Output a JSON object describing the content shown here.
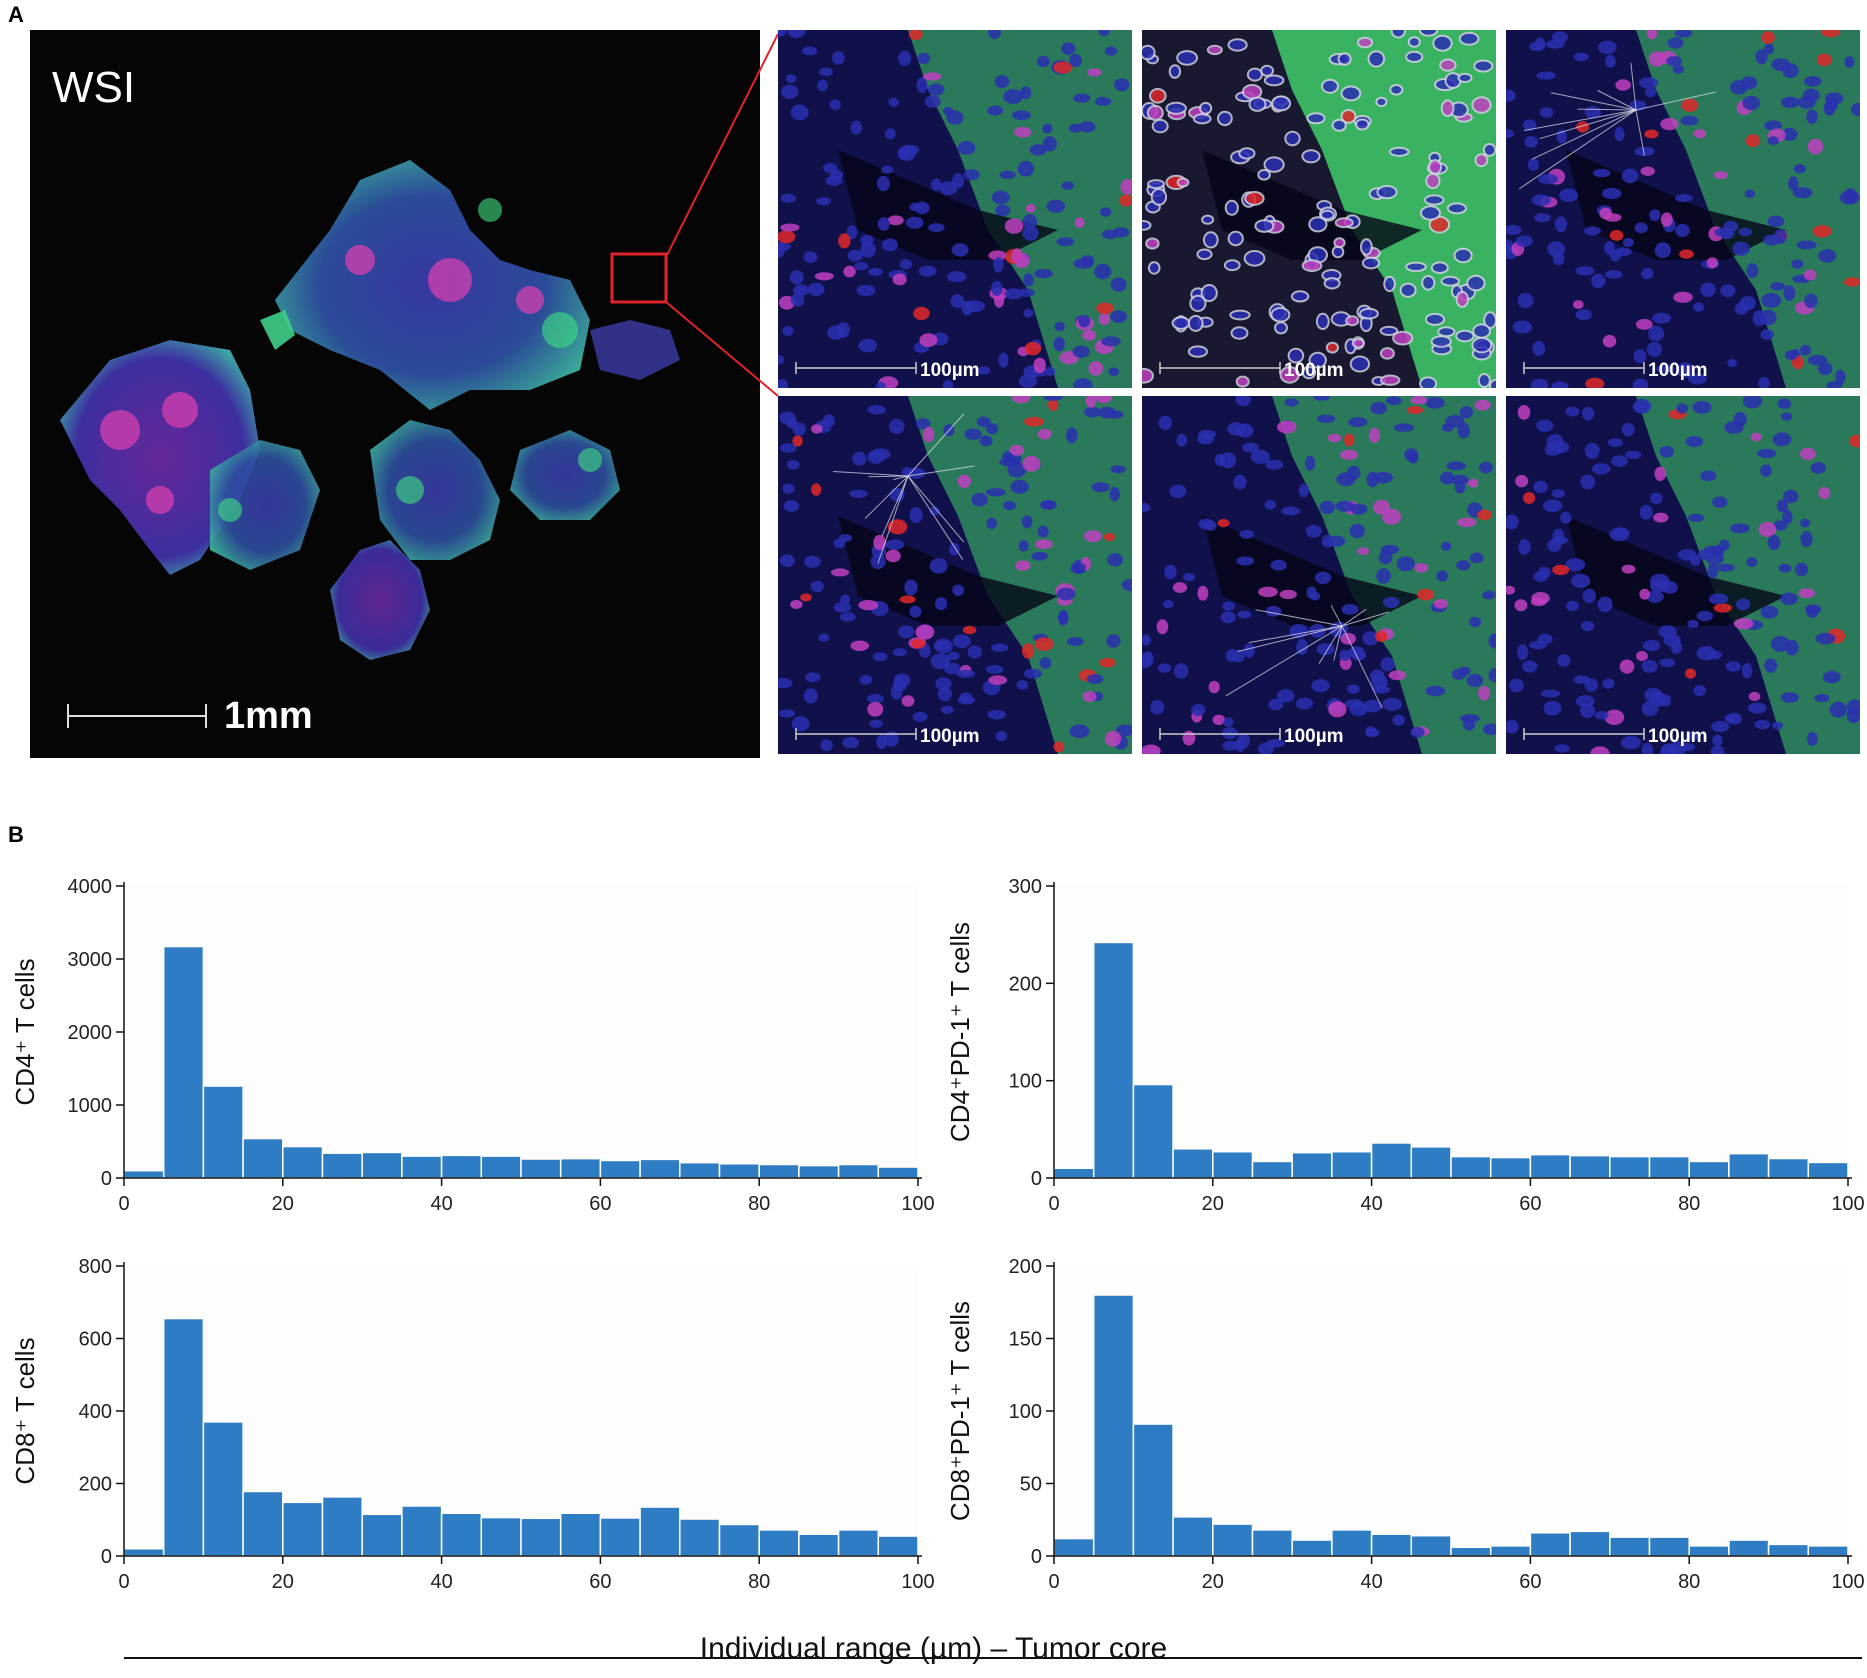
{
  "figure": {
    "panel_a_label": "A",
    "panel_b_label": "B",
    "wsi_label": "WSI",
    "wsi_scale": "1mm",
    "tile_scale": "100µm",
    "x_axis_label": "Individual range (µm) – Tumor core"
  },
  "colors": {
    "bar": "#2e7cc4",
    "tissue_green": "#3fcf6a",
    "nuclei_blue": "#2a2fb0",
    "tcell_magenta": "#c040c0",
    "marker_red": "#e02828",
    "highlight_box": "#e0222a"
  },
  "chart_data": [
    {
      "type": "bar",
      "ylabel": "CD4⁺ T cells",
      "bin_width": 5,
      "x": [
        2.5,
        7.5,
        12.5,
        17.5,
        22.5,
        27.5,
        32.5,
        37.5,
        42.5,
        47.5,
        52.5,
        57.5,
        62.5,
        67.5,
        72.5,
        77.5,
        82.5,
        87.5,
        92.5,
        97.5
      ],
      "values": [
        100,
        3170,
        1260,
        540,
        430,
        340,
        350,
        300,
        310,
        300,
        260,
        265,
        240,
        255,
        210,
        195,
        185,
        170,
        185,
        150
      ],
      "xlim": [
        0,
        100
      ],
      "ylim": [
        0,
        4000
      ],
      "xticks": [
        0,
        20,
        40,
        60,
        80,
        100
      ],
      "yticks": [
        0,
        1000,
        2000,
        3000,
        4000
      ]
    },
    {
      "type": "bar",
      "ylabel": "CD4⁺PD-1⁺ T cells",
      "bin_width": 5,
      "x": [
        2.5,
        7.5,
        12.5,
        17.5,
        22.5,
        27.5,
        32.5,
        37.5,
        42.5,
        47.5,
        52.5,
        57.5,
        62.5,
        67.5,
        72.5,
        77.5,
        82.5,
        87.5,
        92.5,
        97.5
      ],
      "values": [
        10,
        242,
        96,
        30,
        27,
        17,
        26,
        27,
        36,
        32,
        22,
        21,
        24,
        23,
        22,
        22,
        17,
        25,
        20,
        16
      ],
      "xlim": [
        0,
        100
      ],
      "ylim": [
        0,
        300
      ],
      "xticks": [
        0,
        20,
        40,
        60,
        80,
        100
      ],
      "yticks": [
        0,
        100,
        200,
        300
      ]
    },
    {
      "type": "bar",
      "ylabel": "CD8⁺ T cells",
      "bin_width": 5,
      "x": [
        2.5,
        7.5,
        12.5,
        17.5,
        22.5,
        27.5,
        32.5,
        37.5,
        42.5,
        47.5,
        52.5,
        57.5,
        62.5,
        67.5,
        72.5,
        77.5,
        82.5,
        87.5,
        92.5,
        97.5
      ],
      "values": [
        20,
        655,
        370,
        178,
        148,
        163,
        115,
        138,
        118,
        106,
        104,
        118,
        105,
        135,
        102,
        87,
        72,
        60,
        72,
        55
      ],
      "xlim": [
        0,
        100
      ],
      "ylim": [
        0,
        800
      ],
      "xticks": [
        0,
        20,
        40,
        60,
        80,
        100
      ],
      "yticks": [
        0,
        200,
        400,
        600,
        800
      ]
    },
    {
      "type": "bar",
      "ylabel": "CD8⁺PD-1⁺ T cells",
      "bin_width": 5,
      "x": [
        2.5,
        7.5,
        12.5,
        17.5,
        22.5,
        27.5,
        32.5,
        37.5,
        42.5,
        47.5,
        52.5,
        57.5,
        62.5,
        67.5,
        72.5,
        77.5,
        82.5,
        87.5,
        92.5,
        97.5
      ],
      "values": [
        12,
        180,
        91,
        27,
        22,
        18,
        11,
        18,
        15,
        14,
        6,
        7,
        16,
        17,
        13,
        13,
        7,
        11,
        8,
        7
      ],
      "xlim": [
        0,
        100
      ],
      "ylim": [
        0,
        200
      ],
      "xticks": [
        0,
        20,
        40,
        60,
        80,
        100
      ],
      "yticks": [
        0,
        50,
        100,
        150,
        200
      ]
    }
  ]
}
